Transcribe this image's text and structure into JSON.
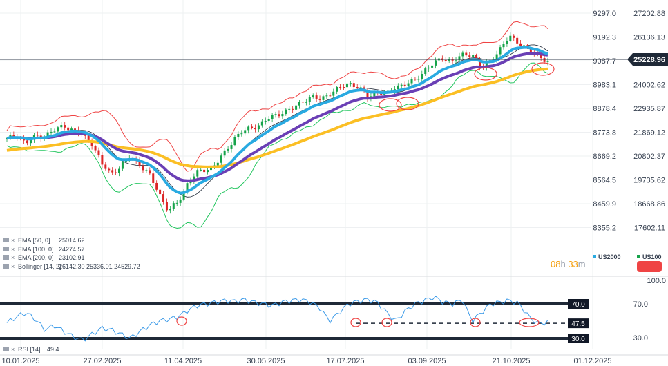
{
  "chart_data": {
    "type": "candlestick",
    "main_axis_left": {
      "ticks": [
        "9297.0",
        "9192.3",
        "9087.7",
        "8983.1",
        "8878.4",
        "8773.8",
        "8669.2",
        "8564.5",
        "8459.9",
        "8355.2"
      ],
      "range": [
        8300,
        9320
      ]
    },
    "main_axis_right": {
      "ticks": [
        "27202.88",
        "26136.13",
        "25069.37",
        "24002.62",
        "22935.87",
        "21869.12",
        "20802.37",
        "19735.62",
        "18668.86",
        "17602.11"
      ],
      "current_price": "25228.96"
    },
    "x_axis": {
      "tick_labels": [
        "10.01.2025",
        "27.02.2025",
        "11.04.2025",
        "30.05.2025",
        "17.07.2025",
        "03.09.2025",
        "21.10.2025",
        "01.12.2025"
      ]
    },
    "price_path": [
      8720,
      8745,
      8700,
      8735,
      8740,
      8760,
      8790,
      8760,
      8740,
      8700,
      8600,
      8560,
      8590,
      8640,
      8600,
      8550,
      8470,
      8380,
      8420,
      8510,
      8560,
      8580,
      8600,
      8660,
      8730,
      8760,
      8780,
      8800,
      8830,
      8850,
      8860,
      8900,
      8920,
      8910,
      8940,
      8960,
      8990,
      8970,
      8920,
      8950,
      8930,
      8975,
      8980,
      9000,
      9050,
      9080,
      9110,
      9090,
      9120,
      9130,
      9050,
      9100,
      9150,
      9210,
      9180,
      9140,
      9120,
      9090
    ],
    "series": [
      {
        "name": "EMA [50, 0]",
        "value": "25014.62",
        "color": "#29aae1"
      },
      {
        "name": "EMA [100, 0]",
        "value": "24274.57",
        "color": "#6a3fb5"
      },
      {
        "name": "EMA [200, 0]",
        "value": "23102.91",
        "color": "#fbbf24"
      },
      {
        "name": "Bollinger [14, 2]",
        "values": [
          "26142.30",
          "25336.01",
          "24529.72"
        ],
        "colors": [
          "#ef4444",
          "#1f2937",
          "#22c55e"
        ]
      }
    ],
    "legend_items": [
      {
        "label": "US2000",
        "color": "#29aae1"
      },
      {
        "label": "US100",
        "color": "#16a34a"
      }
    ],
    "timer": {
      "hours": "08",
      "h_unit": "h",
      "minutes": "33",
      "m_unit": "m"
    },
    "rsi": {
      "label": "RSI [14]",
      "value": "49.4",
      "axis_ticks": [
        "100.0",
        "70.0",
        "30.0"
      ],
      "levels": [
        "70.0",
        "47.5",
        "30.0"
      ],
      "path": [
        48,
        55,
        60,
        52,
        40,
        45,
        38,
        32,
        28,
        35,
        42,
        40,
        35,
        30,
        38,
        45,
        50,
        52,
        55,
        62,
        68,
        70,
        72,
        74,
        73,
        75,
        72,
        70,
        68,
        72,
        74,
        75,
        72,
        65,
        50,
        60,
        70,
        73,
        75,
        72,
        60,
        50,
        62,
        70,
        74,
        78,
        72,
        70,
        75,
        50,
        60,
        70,
        72,
        74,
        70,
        55,
        47,
        49
      ]
    }
  }
}
